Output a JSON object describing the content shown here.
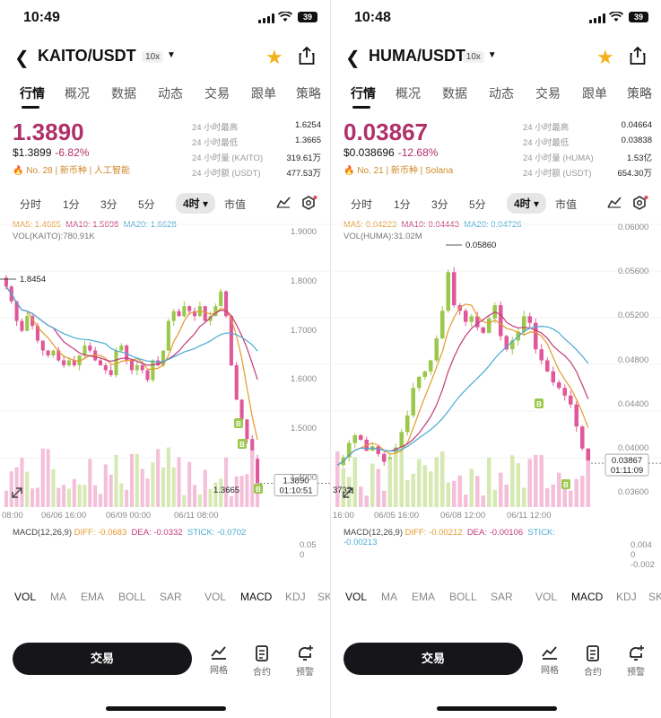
{
  "panels": [
    {
      "status": {
        "time": "10:49",
        "battery": "39"
      },
      "nav": {
        "pair": "KAITO/USDT",
        "leverage": "10x"
      },
      "tabs": [
        "行情",
        "概况",
        "数据",
        "动态",
        "交易",
        "跟单",
        "策略"
      ],
      "price": {
        "last": "1.3890",
        "usd": "$1.3899",
        "change": "-6.82%",
        "tag": "No. 28 | 新币种 | 人工智能"
      },
      "stats": [
        {
          "label": "24 小时最高",
          "value": "1.6254"
        },
        {
          "label": "24 小时最低",
          "value": "1.3665"
        },
        {
          "label": "24 小时量 (KAITO)",
          "value": "319.61万"
        },
        {
          "label": "24 小时额 (USDT)",
          "value": "477.53万"
        }
      ],
      "periods": [
        "分时",
        "1分",
        "3分",
        "5分",
        "4时",
        "市值"
      ],
      "legend": {
        "ma5": "MA5: 1.4665",
        "ma10": "MA10: 1.5698",
        "ma20": "MA20: 1.6628",
        "vol": "VOL(KAITO):780.91K"
      },
      "y_ticks": [
        "1.9000",
        "1.8000",
        "1.7000",
        "1.6000",
        "1.5000",
        "1.4000"
      ],
      "price_box": [
        "1.3890",
        "01:10:51"
      ],
      "annotations": {
        "high": "1.8454",
        "low": "1.3665"
      },
      "x_ticks": [
        "08:00",
        "06/06 16:00",
        "06/09 00:00",
        "06/11 08:00"
      ],
      "macd": {
        "title": "MACD(12,26,9)",
        "diff": "DIFF: -0.0683",
        "dea": "DEA: -0.0332",
        "stick": "STICK: -0.0702",
        "ticks": [
          "0.05",
          "0"
        ]
      },
      "indicators": [
        "VOL",
        "MA",
        "EMA",
        "BOLL",
        "SAR",
        "VOL",
        "MACD",
        "KDJ",
        "SK"
      ],
      "bottom": {
        "trade": "交易",
        "grid": "网格",
        "contract": "合约",
        "alert": "预警"
      }
    },
    {
      "status": {
        "time": "10:48",
        "battery": "39"
      },
      "nav": {
        "pair": "HUMA/USDT",
        "leverage": "10x"
      },
      "tabs": [
        "行情",
        "概况",
        "数据",
        "动态",
        "交易",
        "跟单",
        "策略"
      ],
      "price": {
        "last": "0.03867",
        "usd": "$0.038696",
        "change": "-12.68%",
        "tag": "No. 21 | 新币种 | Solana"
      },
      "stats": [
        {
          "label": "24 小时最高",
          "value": "0.04664"
        },
        {
          "label": "24 小时最低",
          "value": "0.03838"
        },
        {
          "label": "24 小时量 (HUMA)",
          "value": "1.53亿"
        },
        {
          "label": "24 小时额 (USDT)",
          "value": "654.30万"
        }
      ],
      "periods": [
        "分时",
        "1分",
        "3分",
        "5分",
        "4时",
        "市值"
      ],
      "legend": {
        "ma5": "MA5: 0.04223",
        "ma10": "MA10: 0.04443",
        "ma20": "MA20: 0.04726",
        "vol": "VOL(HUMA):31.02M"
      },
      "y_ticks": [
        "0.06000",
        "0.05600",
        "0.05200",
        "0.04800",
        "0.04400",
        "0.04000",
        "0.03600"
      ],
      "price_box": [
        "0.03867",
        "01:11:09"
      ],
      "annotations": {
        "high": "0.05860",
        "low": "3732"
      },
      "x_ticks": [
        "16:00",
        "06/05 16:00",
        "06/08 12:00",
        "06/11 12:00"
      ],
      "macd": {
        "title": "MACD(12,26,9)",
        "diff": "DIFF: -0.00212",
        "dea": "DEA: -0.00106",
        "stick": "STICK:",
        "stick2": "-0.00213",
        "ticks": [
          "0.004",
          "0",
          "-0.002"
        ]
      },
      "indicators": [
        "VOL",
        "MA",
        "EMA",
        "BOLL",
        "SAR",
        "VOL",
        "MACD",
        "KDJ",
        "SK"
      ],
      "bottom": {
        "trade": "交易",
        "grid": "网格",
        "contract": "合约",
        "alert": "预警"
      }
    }
  ],
  "colors": {
    "up": "#9ac84a",
    "down": "#e0589a",
    "ma5": "#e49a2c",
    "ma10": "#c23a7a",
    "ma20": "#4aaad5",
    "star": "#f2b21b"
  },
  "chart_data": [
    {
      "type": "candlestick",
      "title": "KAITO/USDT 4时",
      "close": [
        1.79,
        1.76,
        1.72,
        1.7,
        1.73,
        1.71,
        1.68,
        1.66,
        1.65,
        1.66,
        1.64,
        1.63,
        1.64,
        1.63,
        1.65,
        1.67,
        1.66,
        1.64,
        1.63,
        1.62,
        1.61,
        1.66,
        1.67,
        1.64,
        1.62,
        1.63,
        1.62,
        1.6,
        1.64,
        1.63,
        1.66,
        1.72,
        1.74,
        1.73,
        1.75,
        1.74,
        1.73,
        1.75,
        1.72,
        1.73,
        1.75,
        1.78,
        1.73,
        1.63,
        1.56,
        1.52,
        1.48,
        1.44,
        1.39
      ],
      "ylim": [
        1.36,
        1.92
      ]
    },
    {
      "type": "candlestick",
      "title": "HUMA/USDT 4时",
      "close": [
        0.0385,
        0.0392,
        0.0405,
        0.0412,
        0.0408,
        0.0398,
        0.0402,
        0.0395,
        0.0388,
        0.0392,
        0.0401,
        0.0415,
        0.043,
        0.0455,
        0.0465,
        0.047,
        0.048,
        0.05,
        0.0525,
        0.056,
        0.053,
        0.0525,
        0.0515,
        0.052,
        0.051,
        0.0505,
        0.0518,
        0.053,
        0.0502,
        0.049,
        0.0498,
        0.0506,
        0.052,
        0.0514,
        0.049,
        0.048,
        0.047,
        0.046,
        0.0455,
        0.0448,
        0.044,
        0.042,
        0.04,
        0.03867
      ],
      "ylim": [
        0.0355,
        0.0605
      ]
    }
  ]
}
